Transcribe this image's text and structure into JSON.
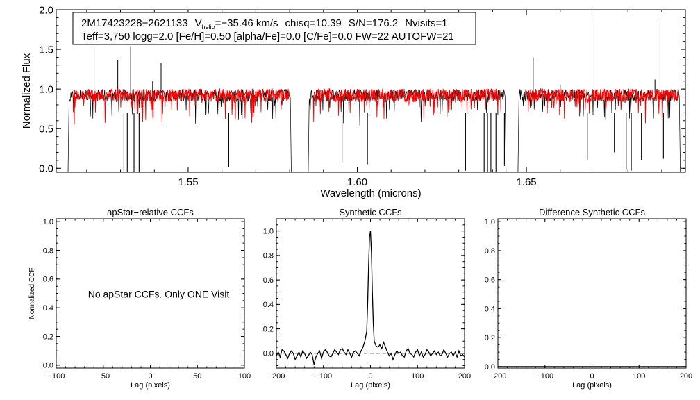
{
  "colors": {
    "observed": "#000000",
    "model": "#ff0000",
    "axis": "#000000",
    "zero_line": "#555555"
  },
  "header": {
    "star_id": "2M17423228−2621133",
    "vhelio_label_main": "V",
    "vhelio_label_sub": "helio",
    "vhelio_value": "=−35.46 km/s",
    "chisq": "chisq=10.39",
    "snr": "S/N=176.2",
    "nvisits": "Nvisits=1",
    "params": "Teff=3,750 logg=2.0 [Fe/H]=0.50 [alpha/Fe]=0.0 [C/Fe]=0.0 FW=22 AUTOFW=21"
  },
  "chart_data": [
    {
      "id": "spectrum",
      "type": "line",
      "title": "",
      "xlabel": "Wavelength (microns)",
      "ylabel": "Normalized Flux",
      "xlim": [
        1.511,
        1.697
      ],
      "ylim": [
        -0.05,
        2.0
      ],
      "xticks": [
        1.55,
        1.6,
        1.65
      ],
      "xtick_labels": [
        "1.55",
        "1.60",
        "1.65"
      ],
      "yticks": [
        0.0,
        0.5,
        1.0,
        1.5,
        2.0
      ],
      "ytick_labels": [
        "0.0",
        "0.5",
        "1.0",
        "1.5",
        "2.0"
      ],
      "series": [
        {
          "name": "observed",
          "segments": [
            [
              1.5145,
              1.5805
            ],
            [
              1.5855,
              1.644
            ],
            [
              1.6475,
              1.6955
            ]
          ],
          "continuum": 0.92,
          "emission_lines": [
            [
              1.5222,
              1.54
            ],
            [
              1.5292,
              1.36
            ],
            [
              1.533,
              1.54
            ],
            [
              1.542,
              1.33
            ],
            [
              1.5395,
              1.1
            ],
            [
              1.652,
              1.4
            ],
            [
              1.66,
              1.05
            ],
            [
              1.67,
              1.87
            ],
            [
              1.6895,
              1.86
            ],
            [
              1.688,
              1.12
            ]
          ],
          "absorption_lines": [
            [
              1.531,
              -0.05
            ],
            [
              1.532,
              -0.05
            ],
            [
              1.534,
              -0.05
            ],
            [
              1.5355,
              -0.05
            ],
            [
              1.562,
              0.02
            ],
            [
              1.5955,
              0.08
            ],
            [
              1.603,
              0.05
            ],
            [
              1.632,
              -0.03
            ],
            [
              1.6375,
              -0.05
            ],
            [
              1.6385,
              -0.05
            ],
            [
              1.6395,
              -0.05
            ],
            [
              1.641,
              -0.05
            ],
            [
              1.6435,
              0.03
            ],
            [
              1.668,
              0.1
            ],
            [
              1.676,
              0.2
            ],
            [
              1.6795,
              -0.02
            ],
            [
              1.681,
              -0.03
            ],
            [
              1.684,
              0.1
            ],
            [
              1.6905,
              0.12
            ]
          ]
        },
        {
          "name": "model",
          "segments": [
            [
              1.516,
              1.58
            ],
            [
              1.587,
              1.6425
            ],
            [
              1.65,
              1.695
            ]
          ],
          "continuum": 0.92
        }
      ]
    },
    {
      "id": "apstar-ccf",
      "type": "line",
      "title": "apStar−relative CCFs",
      "xlabel": "Lag (pixels)",
      "ylabel": "Normalized CCF",
      "xlim": [
        -100,
        100
      ],
      "ylim": [
        -0.02,
        1.02
      ],
      "xticks": [
        -100,
        -50,
        0,
        50,
        100
      ],
      "xtick_labels": [
        "−100",
        "−50",
        "0",
        "50",
        "100"
      ],
      "yticks": [
        0.0,
        0.2,
        0.4,
        0.6,
        0.8,
        1.0
      ],
      "ytick_labels": [
        "0.0",
        "0.2",
        "0.4",
        "0.6",
        "0.8",
        "1.0"
      ],
      "series": [],
      "annotation": "No apStar CCFs.  Only ONE Visit"
    },
    {
      "id": "synthetic-ccf",
      "type": "line",
      "title": "Synthetic CCFs",
      "xlabel": "Lag (pixels)",
      "ylabel": "",
      "xlim": [
        -200,
        200
      ],
      "ylim": [
        -0.12,
        1.1
      ],
      "xticks": [
        -200,
        -100,
        0,
        100,
        200
      ],
      "xtick_labels": [
        "−200",
        "−100",
        "0",
        "100",
        "200"
      ],
      "yticks": [
        0.0,
        0.2,
        0.4,
        0.6,
        0.8,
        1.0
      ],
      "ytick_labels": [
        "0.0",
        "0.2",
        "0.4",
        "0.6",
        "0.8",
        "1.0"
      ],
      "series": [
        {
          "name": "ccf",
          "x": [
            -200,
            -196,
            -192,
            -188,
            -184,
            -180,
            -176,
            -172,
            -168,
            -164,
            -160,
            -156,
            -152,
            -148,
            -144,
            -140,
            -136,
            -132,
            -128,
            -124,
            -120,
            -116,
            -112,
            -108,
            -104,
            -100,
            -96,
            -92,
            -88,
            -84,
            -80,
            -76,
            -72,
            -68,
            -64,
            -60,
            -56,
            -52,
            -48,
            -44,
            -40,
            -36,
            -32,
            -28,
            -24,
            -20,
            -16,
            -12,
            -8,
            -6,
            -4,
            -2,
            0,
            2,
            4,
            6,
            8,
            12,
            16,
            20,
            24,
            28,
            32,
            36,
            40,
            44,
            48,
            52,
            56,
            60,
            64,
            68,
            72,
            76,
            80,
            84,
            88,
            92,
            96,
            100,
            104,
            108,
            112,
            116,
            120,
            124,
            128,
            132,
            136,
            140,
            144,
            148,
            152,
            156,
            160,
            164,
            168,
            172,
            176,
            180,
            184,
            188,
            192,
            196,
            200
          ],
          "values": [
            -0.02,
            0.01,
            -0.03,
            0.03,
            0.02,
            -0.01,
            -0.04,
            0.0,
            0.02,
            0.0,
            -0.05,
            -0.02,
            0.01,
            -0.03,
            0.02,
            0.0,
            -0.04,
            -0.02,
            0.01,
            -0.01,
            -0.09,
            -0.03,
            0.0,
            0.02,
            -0.04,
            0.01,
            0.03,
            0.01,
            -0.02,
            -0.03,
            0.0,
            0.03,
            0.01,
            -0.01,
            0.03,
            0.04,
            0.01,
            -0.01,
            0.03,
            0.0,
            -0.03,
            0.01,
            0.02,
            0.0,
            -0.02,
            0.02,
            0.05,
            0.1,
            0.18,
            0.4,
            0.72,
            0.95,
            1.0,
            0.82,
            0.5,
            0.24,
            0.1,
            0.06,
            0.05,
            0.07,
            0.04,
            0.09,
            0.05,
            0.01,
            -0.02,
            0.0,
            -0.05,
            -0.01,
            0.02,
            0.0,
            0.01,
            -0.02,
            -0.03,
            0.02,
            0.04,
            0.0,
            -0.01,
            -0.03,
            0.01,
            0.03,
            -0.02,
            0.01,
            -0.03,
            -0.01,
            0.03,
            0.01,
            -0.02,
            0.0,
            0.02,
            -0.01,
            0.01,
            -0.02,
            -0.01,
            0.03,
            0.0,
            -0.03,
            0.0,
            0.01,
            -0.02,
            0.01,
            -0.03,
            0.02,
            -0.02,
            -0.01,
            -0.03
          ]
        },
        {
          "name": "zero",
          "x": [
            -200,
            200
          ],
          "values": [
            0,
            0
          ],
          "style": "dashed"
        }
      ]
    },
    {
      "id": "diff-ccf",
      "type": "line",
      "title": "Difference Synthetic CCFs",
      "xlabel": "Lag (pixels)",
      "ylabel": "",
      "xlim": [
        -200,
        200
      ],
      "ylim": [
        -0.01,
        1.02
      ],
      "xticks": [
        -200,
        -100,
        0,
        100,
        200
      ],
      "xtick_labels": [
        "−200",
        "−100",
        "0",
        "100",
        "200"
      ],
      "yticks": [
        0.0,
        0.2,
        0.4,
        0.6,
        0.8,
        1.0
      ],
      "ytick_labels": [
        "0.0",
        "0.2",
        "0.4",
        "0.6",
        "0.8",
        "1.0"
      ],
      "series": [
        {
          "name": "diff",
          "x": [
            -200,
            200
          ],
          "values": [
            0,
            0
          ]
        }
      ]
    }
  ]
}
